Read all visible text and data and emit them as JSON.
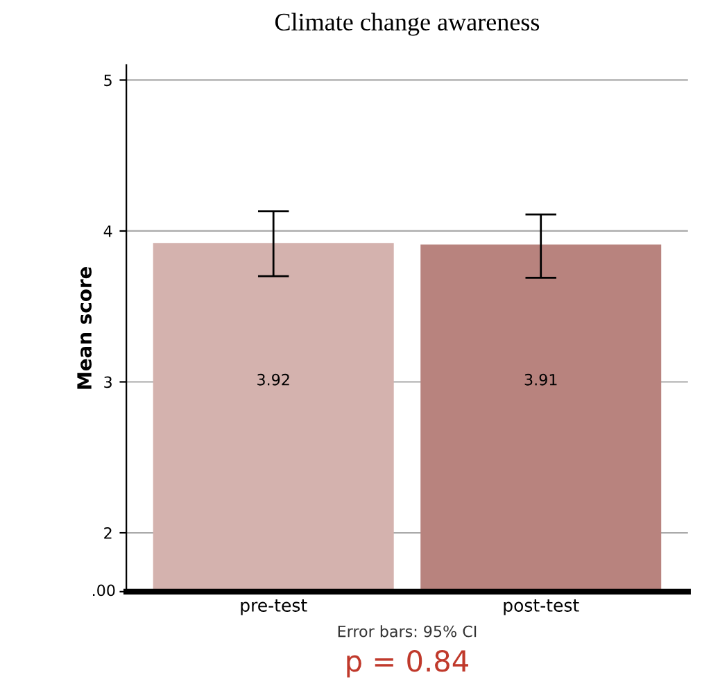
{
  "chart_data": {
    "type": "bar",
    "title": "Climate change awareness",
    "ylabel": "Mean score",
    "categories": [
      "pre-test",
      "post-test"
    ],
    "values": [
      3.92,
      3.91
    ],
    "colors": [
      "#d4b2ae",
      "#b8837e"
    ],
    "errors": [
      [
        3.7,
        4.13
      ],
      [
        3.69,
        4.11
      ]
    ],
    "value_labels": [
      "3.92",
      "3.91"
    ],
    "ylim": [
      1.61,
      5.1
    ],
    "yticks": [
      {
        "value": 1.61,
        "label": null
      },
      2,
      3,
      4,
      5
    ],
    "grid": "y",
    "annotations": [
      "Error bars: 95% CI",
      "p = 0.84",
      ".00"
    ]
  }
}
